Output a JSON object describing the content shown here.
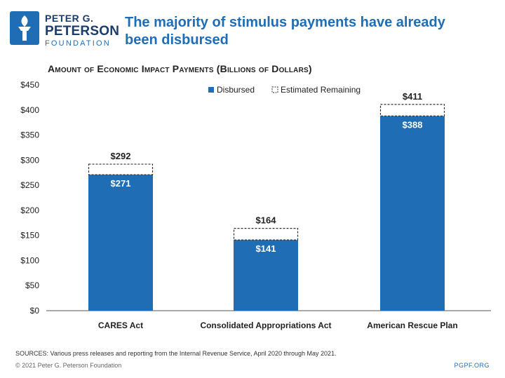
{
  "brand": {
    "line1": "PETER G.",
    "line2": "PETERSON",
    "line3": "FOUNDATION",
    "color": "#1f6eb5",
    "dark_color": "#1a3d6d"
  },
  "headline": "The majority of stimulus payments have already been disbursed",
  "chart_data": {
    "type": "bar",
    "title": "Amount of Economic Impact Payments (Billions of Dollars)",
    "xlabel": "",
    "ylabel": "",
    "ylim": [
      0,
      450
    ],
    "y_ticks": [
      "$0",
      "$50",
      "$100",
      "$150",
      "$200",
      "$250",
      "$300",
      "$350",
      "$400",
      "$450"
    ],
    "y_tick_values": [
      0,
      50,
      100,
      150,
      200,
      250,
      300,
      350,
      400,
      450
    ],
    "grid": false,
    "legend_position": "top-right",
    "categories": [
      "CARES Act",
      "Consolidated Appropriations Act",
      "American Rescue Plan"
    ],
    "series": [
      {
        "name": "Disbursed",
        "values": [
          271,
          141,
          388
        ],
        "labels": [
          "$271",
          "$141",
          "$388"
        ],
        "color": "#1f6eb5",
        "style": "solid"
      },
      {
        "name": "Estimated Remaining",
        "values": [
          21,
          23,
          23
        ],
        "style": "dashed-outline"
      }
    ],
    "totals": [
      292,
      164,
      411
    ],
    "total_labels": [
      "$292",
      "$164",
      "$411"
    ],
    "stacked": true
  },
  "footer": {
    "sources": "SOURCES: Various press releases and reporting from the Internal Revenue Service, April 2020 through May 2021.",
    "copyright": "© 2021 Peter G. Peterson Foundation",
    "url": "PGPF.ORG"
  }
}
